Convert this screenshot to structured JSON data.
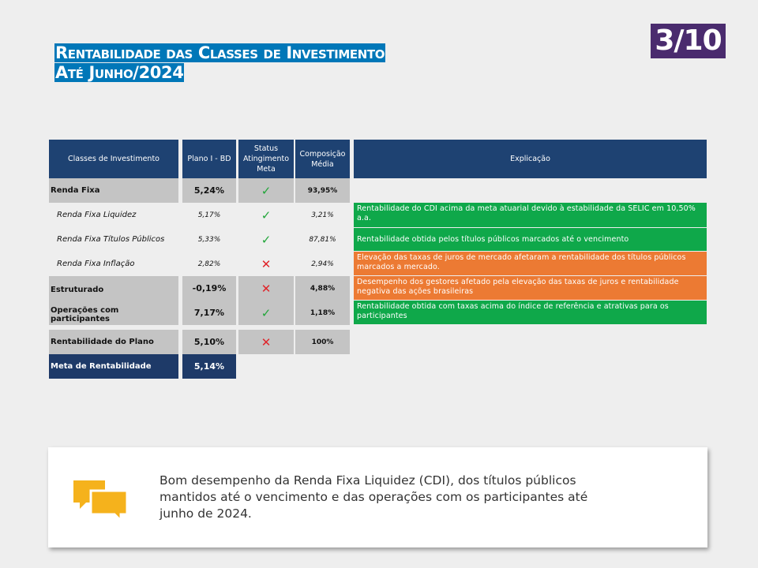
{
  "title": {
    "line1": "Rentabilidade das Classes de Investimento",
    "line2": "Até Junho/2024"
  },
  "page_indicator": "3/10",
  "table": {
    "headers": {
      "classes": "Classes de Investimento",
      "plano": "Plano I - BD",
      "status": "Status Atingimento Meta",
      "composicao": "Composição Média",
      "explicacao": "Explicação"
    },
    "rows": [
      {
        "label": "Renda Fixa",
        "plano": "5,24%",
        "status": "ok",
        "comp": "93,95%"
      },
      {
        "label": "Renda Fixa Liquidez",
        "plano": "5,17%",
        "status": "ok",
        "comp": "3,21%"
      },
      {
        "label": "Renda Fixa Títulos Públicos",
        "plano": "5,33%",
        "status": "ok",
        "comp": "87,81%"
      },
      {
        "label": "Renda Fixa Inflação",
        "plano": "2,82%",
        "status": "fail",
        "comp": "2,94%"
      },
      {
        "label": "Estruturado",
        "plano": "-0,19%",
        "status": "fail",
        "comp": "4,88%"
      },
      {
        "label": "Operações com participantes",
        "plano": "7,17%",
        "status": "ok",
        "comp": "1,18%"
      },
      {
        "label": "Rentabilidade do Plano",
        "plano": "5,10%",
        "status": "fail",
        "comp": "100%"
      },
      {
        "label": "Meta de Rentabilidade",
        "plano": "5,14%"
      }
    ],
    "status_symbols": {
      "ok": "✓",
      "fail": "✕"
    },
    "explanations": [
      {
        "text": "Rentabilidade do CDI acima da meta atuarial devido à estabilidade da SELIC em 10,50% a.a.",
        "color": "#0fa84a"
      },
      {
        "text": "Rentabilidade obtida pelos títulos públicos marcados até o vencimento",
        "color": "#0fa84a"
      },
      {
        "text": "Elevação das taxas de juros de mercado afetaram a rentabilidade dos títulos públicos marcados a mercado.",
        "color": "#ec7a33"
      },
      {
        "text": "Desempenho dos gestores afetado pela elevação das taxas de juros e rentabilidade negativa das ações brasileiras",
        "color": "#ec7a33"
      },
      {
        "text": "Rentabilidade obtida com taxas acima do índice de referência e atrativas para os participantes",
        "color": "#0fa84a"
      }
    ]
  },
  "comment": {
    "icon": "chat-bubbles-icon",
    "text": "Bom desempenho da Renda Fixa Liquidez (CDI), dos títulos públicos mantidos até o vencimento e das operações com os participantes até junho de 2024."
  },
  "colors": {
    "header_navy": "#1e4272",
    "title_blue": "#0077b8",
    "badge_purple": "#4a2b6e",
    "green": "#0fa84a",
    "orange": "#ec7a33"
  }
}
